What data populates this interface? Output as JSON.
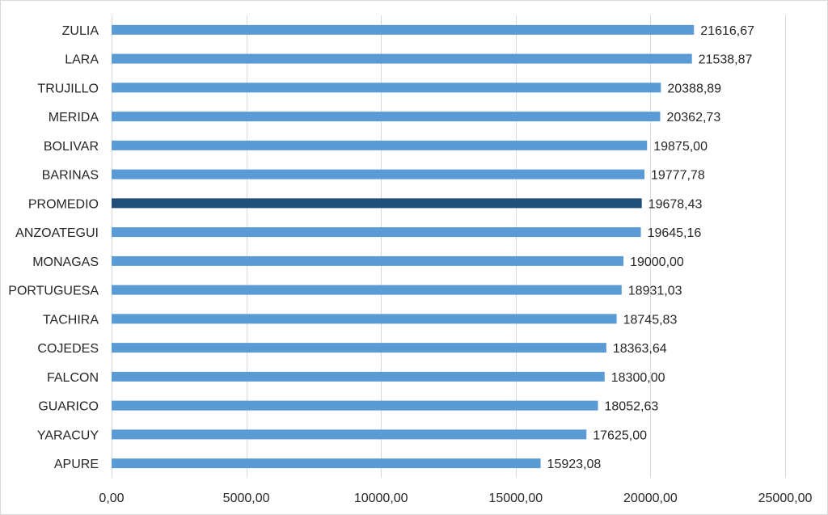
{
  "chart_data": {
    "type": "bar",
    "orientation": "horizontal",
    "categories": [
      "ZULIA",
      "LARA",
      "TRUJILLO",
      "MERIDA",
      "BOLIVAR",
      "BARINAS",
      "PROMEDIO",
      "ANZOATEGUI",
      "MONAGAS",
      "PORTUGUESA",
      "TACHIRA",
      "COJEDES",
      "FALCON",
      "GUARICO",
      "YARACUY",
      "APURE"
    ],
    "values": [
      21616.67,
      21538.87,
      20388.89,
      20362.73,
      19875.0,
      19777.78,
      19678.43,
      19645.16,
      19000.0,
      18931.03,
      18745.83,
      18363.64,
      18300.0,
      18052.63,
      17625.0,
      15923.08
    ],
    "value_labels": [
      "21616,67",
      "21538,87",
      "20388,89",
      "20362,73",
      "19875,00",
      "19777,78",
      "19678,43",
      "19645,16",
      "19000,00",
      "18931,03",
      "18745,83",
      "18363,64",
      "18300,00",
      "18052,63",
      "17625,00",
      "15923,08"
    ],
    "highlight_category": "PROMEDIO",
    "colors": {
      "bar": "#5b9bd5",
      "highlight": "#1f4e79",
      "grid": "#d9d9d9",
      "text": "#262626"
    },
    "xlim": [
      0,
      25000
    ],
    "x_ticks": [
      0,
      5000,
      10000,
      15000,
      20000,
      25000
    ],
    "x_tick_labels": [
      "0,00",
      "5000,00",
      "10000,00",
      "15000,00",
      "20000,00",
      "25000,00"
    ],
    "grid": "vertical",
    "title": "",
    "xlabel": "",
    "ylabel": ""
  }
}
